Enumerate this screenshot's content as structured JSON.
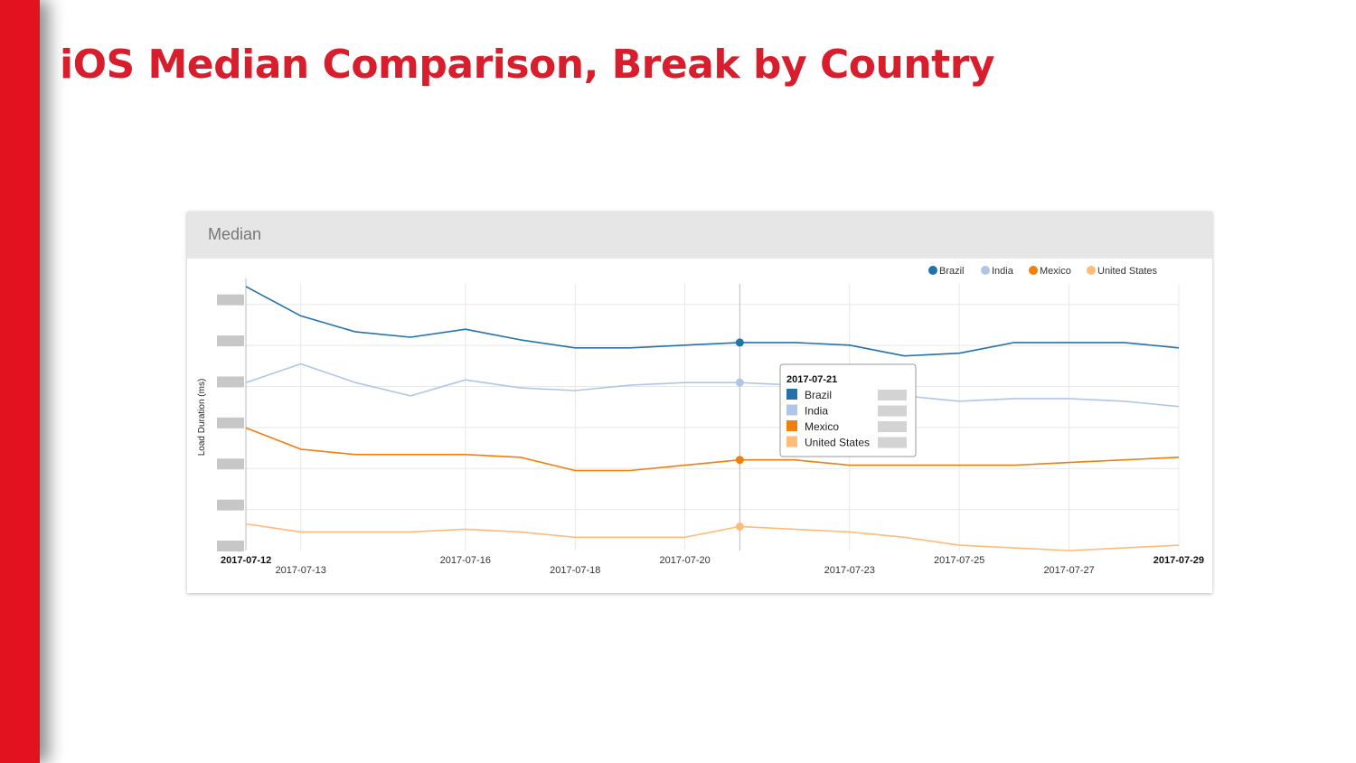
{
  "slide": {
    "title": "iOS Median Comparison, Break by Country",
    "accent_color": "#e2131f"
  },
  "panel": {
    "title": "Median"
  },
  "chart_data": {
    "type": "line",
    "title": "Median",
    "xlabel": "",
    "ylabel": "Load Duration (ms)",
    "y_tick_labels_redacted": true,
    "x": [
      "2017-07-12",
      "2017-07-13",
      "2017-07-14",
      "2017-07-15",
      "2017-07-16",
      "2017-07-17",
      "2017-07-18",
      "2017-07-19",
      "2017-07-20",
      "2017-07-21",
      "2017-07-22",
      "2017-07-23",
      "2017-07-24",
      "2017-07-25",
      "2017-07-26",
      "2017-07-27",
      "2017-07-28",
      "2017-07-29"
    ],
    "x_tick_labels": [
      {
        "label": "2017-07-12",
        "bold": true
      },
      {
        "label": "2017-07-13",
        "bold": false
      },
      {
        "label": "2017-07-16",
        "bold": false
      },
      {
        "label": "2017-07-18",
        "bold": false
      },
      {
        "label": "2017-07-20",
        "bold": false
      },
      {
        "label": "2017-07-23",
        "bold": false
      },
      {
        "label": "2017-07-25",
        "bold": false
      },
      {
        "label": "2017-07-27",
        "bold": false
      },
      {
        "label": "2017-07-29",
        "bold": true
      }
    ],
    "ylim": [
      0,
      1
    ],
    "grid": true,
    "legend_position": "top-right",
    "series": [
      {
        "name": "Brazil",
        "color": "#2471ab",
        "values": [
          0.99,
          0.88,
          0.82,
          0.8,
          0.83,
          0.79,
          0.76,
          0.76,
          0.77,
          0.78,
          0.78,
          0.77,
          0.73,
          0.74,
          0.78,
          0.78,
          0.78,
          0.76
        ]
      },
      {
        "name": "India",
        "color": "#aec7e8",
        "values": [
          0.63,
          0.7,
          0.63,
          0.58,
          0.64,
          0.61,
          0.6,
          0.62,
          0.63,
          0.63,
          0.62,
          0.6,
          0.58,
          0.56,
          0.57,
          0.57,
          0.56,
          0.54
        ]
      },
      {
        "name": "Mexico",
        "color": "#f07f0e",
        "values": [
          0.46,
          0.38,
          0.36,
          0.36,
          0.36,
          0.35,
          0.3,
          0.3,
          0.32,
          0.34,
          0.34,
          0.32,
          0.32,
          0.32,
          0.32,
          0.33,
          0.34,
          0.35
        ]
      },
      {
        "name": "United States",
        "color": "#ffbb78",
        "values": [
          0.1,
          0.07,
          0.07,
          0.07,
          0.08,
          0.07,
          0.05,
          0.05,
          0.05,
          0.09,
          0.08,
          0.07,
          0.05,
          0.02,
          0.01,
          0.0,
          0.01,
          0.02
        ]
      }
    ],
    "tooltip": {
      "date": "2017-07-21",
      "entries": [
        "Brazil",
        "India",
        "Mexico",
        "United States"
      ]
    }
  }
}
